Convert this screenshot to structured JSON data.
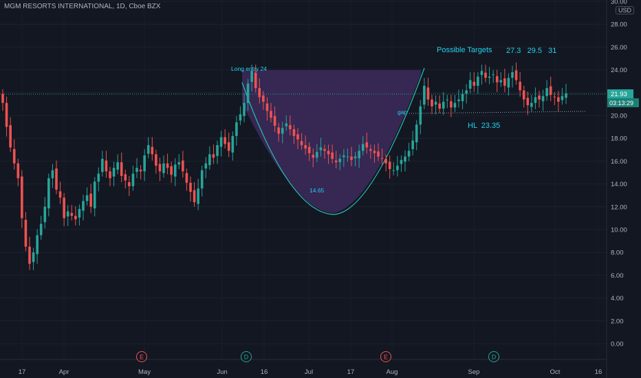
{
  "header": {
    "title": "MGM RESORTS INTERNATIONAL, 1D, Cboe BZX",
    "currency": "USD"
  },
  "price_tag": {
    "price": "21.93",
    "countdown": "03:13:29"
  },
  "colors": {
    "background": "#131722",
    "up": "#26a69a",
    "down": "#ef5350",
    "pattern_fill": "#3d2a5c",
    "pattern_line": "#22c4b4",
    "annotation": "#22d3ee"
  },
  "chart_data": {
    "type": "candlestick",
    "title": "MGM RESORTS INTERNATIONAL, 1D, Cboe BZX",
    "ylim": [
      -1,
      30
    ],
    "yticks": [
      0,
      2,
      4,
      6,
      8,
      10,
      12,
      14,
      16,
      18,
      20,
      22,
      24,
      26,
      28,
      30
    ],
    "ytick_labels": [
      "0.00",
      "2.00",
      "4.00",
      "6.00",
      "8.00",
      "10.00",
      "12.00",
      "14.00",
      "16.00",
      "18.00",
      "20.00",
      "22.00",
      "24.00",
      "26.00",
      "28.00",
      "30.00"
    ],
    "xtick_labels": [
      "17",
      "Apr",
      "May",
      "Jun",
      "16",
      "Jul",
      "17",
      "Aug",
      "Sep",
      "Oct",
      "16"
    ],
    "last_price": 21.93,
    "closes": [
      21.1,
      19,
      17.2,
      15.8,
      14.5,
      11,
      8.5,
      7,
      8,
      9.5,
      10.5,
      12,
      14.5,
      15.2,
      13.5,
      12.8,
      11,
      11.6,
      11.2,
      10.9,
      11.8,
      12.5,
      13,
      12,
      14.2,
      14.9,
      16.2,
      15.1,
      14.5,
      15.4,
      15.9,
      14.7,
      14.3,
      13.8,
      14.9,
      15.4,
      15.1,
      16.5,
      17.4,
      16.6,
      15.6,
      15.1,
      15.8,
      15.4,
      14.8,
      15.7,
      15.9,
      15.1,
      14.1,
      13.3,
      12.4,
      13.6,
      15.2,
      15.8,
      16.6,
      16.3,
      17.4,
      18.1,
      17.5,
      16.9,
      18.2,
      19.4,
      20.1,
      21.1,
      22.8,
      23.9,
      22.4,
      21.6,
      21.2,
      20.4,
      19.8,
      19.1,
      18.4,
      18.9,
      19.3,
      18.8,
      18.2,
      17.9,
      17.4,
      17.1,
      16.7,
      16.3,
      16.8,
      17.2,
      16.9,
      16.6,
      16.2,
      15.9,
      16.2,
      16.5,
      16.4,
      16.1,
      16.4,
      16.9,
      17.5,
      17.2,
      16.9,
      16.7,
      16.4,
      16.2,
      15.8,
      15.3,
      15.2,
      15.6,
      16.1,
      16.4,
      16.9,
      17.8,
      19.2,
      20.8,
      22.6,
      21.4,
      20.8,
      21.2,
      20.6,
      21.2,
      21.4,
      20.7,
      21.1,
      21.4,
      21.9,
      22.2,
      23.1,
      22.6,
      23.4,
      23.9,
      23.3,
      23.4,
      23.6,
      22.9,
      23.1,
      22.6,
      23.3,
      23.8,
      23.1,
      22.2,
      21.4,
      20.9,
      21.1,
      21.6,
      21.4,
      21.7,
      22.4,
      21.8,
      21.6,
      21.2,
      21.7,
      21.93
    ]
  },
  "annotations": {
    "long_entry": "Long entry 24",
    "possible_targets": "Possible Targets",
    "target_values": "27.3   29.5   31",
    "bottom_value": "14.65",
    "gap": "gap",
    "hl": "HL  23.35"
  },
  "events": [
    "E",
    "D",
    "E",
    "D"
  ]
}
